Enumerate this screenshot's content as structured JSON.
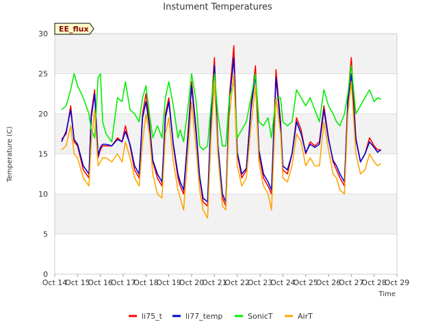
{
  "chart_data": {
    "type": "line",
    "title": "Instument Temperatures",
    "xlabel": "Time",
    "ylabel": "Temperature (C)",
    "ylim": [
      0,
      30
    ],
    "yticks": [
      "0",
      "5",
      "10",
      "15",
      "20",
      "25",
      "30"
    ],
    "xlim": [
      14,
      29
    ],
    "xticks": [
      "Oct 14",
      "Oct 15",
      "Oct 16",
      "Oct 17",
      "Oct 18",
      "Oct 19",
      "Oct 20",
      "Oct 21",
      "Oct 22",
      "Oct 23",
      "Oct 24",
      "Oct 25",
      "Oct 26",
      "Oct 27",
      "Oct 28",
      "Oct 29"
    ],
    "grid": "horizontal alternating bands",
    "legend_position": "bottom-center",
    "annotation": "EE_flux",
    "x": [
      14.3,
      14.5,
      14.7,
      14.85,
      15.0,
      15.25,
      15.5,
      15.6,
      15.75,
      15.9,
      16.0,
      16.1,
      16.25,
      16.5,
      16.75,
      16.95,
      17.1,
      17.3,
      17.5,
      17.7,
      17.85,
      18.0,
      18.15,
      18.3,
      18.5,
      18.7,
      18.85,
      19.0,
      19.2,
      19.4,
      19.5,
      19.65,
      19.85,
      20.0,
      20.2,
      20.35,
      20.5,
      20.7,
      20.85,
      21.0,
      21.15,
      21.35,
      21.5,
      21.65,
      21.85,
      22.0,
      22.2,
      22.4,
      22.6,
      22.8,
      22.95,
      23.15,
      23.35,
      23.5,
      23.7,
      23.9,
      24.0,
      24.2,
      24.4,
      24.6,
      24.8,
      25.0,
      25.2,
      25.4,
      25.6,
      25.8,
      26.0,
      26.2,
      26.35,
      26.5,
      26.7,
      26.85,
      27.0,
      27.2,
      27.4,
      27.6,
      27.8,
      28.0,
      28.15,
      28.3
    ],
    "series": [
      {
        "name": "li75_t",
        "color": "#ff0000",
        "values": [
          16.8,
          17.5,
          21,
          16.5,
          16,
          13,
          12,
          20,
          23,
          14.5,
          15.5,
          16,
          16,
          16,
          17,
          16.5,
          18.5,
          16,
          13,
          12,
          20,
          22.5,
          19,
          14,
          12,
          11,
          20,
          22,
          16,
          12,
          11,
          10,
          18,
          24,
          18,
          12,
          9,
          8.5,
          20,
          27,
          16,
          9.5,
          8.5,
          22,
          28.5,
          15,
          12,
          13,
          21,
          26,
          15,
          12,
          11,
          10,
          25.5,
          19,
          13,
          12.5,
          15,
          19.5,
          18,
          15,
          16.5,
          16,
          16.5,
          21,
          17,
          14,
          13,
          12,
          11,
          22,
          27,
          17,
          14,
          15,
          17,
          16,
          15.5,
          15.5
        ]
      },
      {
        "name": "li77_temp",
        "color": "#0000cc",
        "values": [
          16.5,
          17.8,
          20.5,
          16.8,
          16.2,
          13.5,
          12.5,
          19.5,
          22.5,
          14.8,
          15.8,
          16.2,
          16.2,
          16,
          16.8,
          16.5,
          17.8,
          16.2,
          13.5,
          12.5,
          19.5,
          21.5,
          18.5,
          14.2,
          12.5,
          11.5,
          19.5,
          21.5,
          16.2,
          12.5,
          11.5,
          10.5,
          17.5,
          23.5,
          17.5,
          12.2,
          9.5,
          9,
          19.5,
          26,
          16.2,
          10,
          9,
          21.5,
          27,
          15.2,
          12.5,
          13.2,
          20.5,
          25,
          15.5,
          12.5,
          11.5,
          10.5,
          24.5,
          18.5,
          13.5,
          13,
          15,
          19,
          17.5,
          15.2,
          16.2,
          15.8,
          16.2,
          20.5,
          16.8,
          14.2,
          13.5,
          12.5,
          11.5,
          21.5,
          25,
          16.8,
          14,
          15,
          16.5,
          15.8,
          15.2,
          15.5
        ]
      },
      {
        "name": "SonicT",
        "color": "#00ee00",
        "values": [
          20.5,
          21,
          23,
          25,
          23.5,
          22,
          20,
          18,
          17,
          24.5,
          25,
          19,
          17.5,
          16.5,
          22,
          21.5,
          24,
          20.5,
          20,
          19,
          22,
          23.5,
          20,
          17,
          18.5,
          17,
          22,
          24,
          21,
          17,
          18,
          16.5,
          21,
          25,
          21.5,
          16,
          15.5,
          16,
          21,
          25,
          20,
          16,
          16,
          22,
          24,
          17,
          18,
          19,
          22,
          25,
          19,
          18.5,
          19.5,
          17,
          22,
          22,
          19,
          18.5,
          19,
          23,
          22,
          21,
          22,
          20.5,
          19,
          23,
          21,
          20,
          19,
          18.5,
          20,
          22.5,
          26,
          20,
          21,
          22,
          23,
          21.5,
          22,
          21.8
        ]
      },
      {
        "name": "AirT",
        "color": "#ffa500",
        "values": [
          15.5,
          16,
          18.5,
          15,
          14.5,
          12,
          11,
          16.5,
          20.5,
          13.5,
          14,
          14.5,
          14.5,
          14,
          15,
          14,
          16.5,
          14.5,
          12,
          11,
          16.5,
          20,
          17.5,
          12.5,
          10,
          9.5,
          17.5,
          19.5,
          14,
          10.5,
          9.5,
          8,
          15.5,
          21.5,
          15.5,
          10.5,
          8,
          7,
          17,
          24,
          15,
          8.5,
          8,
          19.5,
          25,
          13.5,
          11,
          12,
          18.5,
          23.5,
          14,
          11,
          10,
          8,
          22,
          17.5,
          12,
          11.5,
          13.5,
          17.5,
          16.5,
          13.5,
          14.5,
          13.5,
          13.5,
          19,
          15.5,
          12.5,
          12,
          10.5,
          10,
          20,
          24,
          15,
          12.5,
          13,
          15,
          14,
          13.5,
          13.8
        ]
      }
    ]
  }
}
